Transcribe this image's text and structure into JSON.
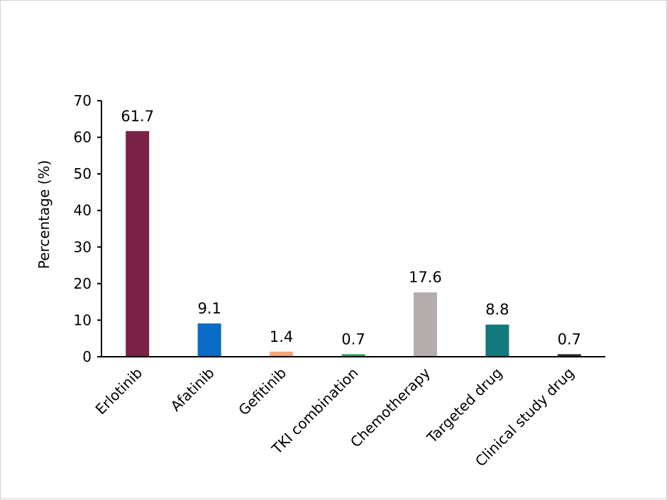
{
  "chart_data": {
    "type": "bar",
    "title": "",
    "xlabel": "",
    "ylabel": "Percentage (%)",
    "ylim": [
      0,
      70
    ],
    "yticks": [
      0,
      10,
      20,
      30,
      40,
      50,
      60,
      70
    ],
    "grid": false,
    "legend": "none",
    "categories": [
      "Erlotinib",
      "Afatinib",
      "Gefitinib",
      "TKI combination",
      "Chemotherapy",
      "Targeted drug",
      "Clinical study drug"
    ],
    "values": [
      61.7,
      9.1,
      1.4,
      0.7,
      17.6,
      8.8,
      0.7
    ],
    "data_labels": [
      "61.7",
      "9.1",
      "1.4",
      "0.7",
      "17.6",
      "8.8",
      "0.7"
    ],
    "colors": [
      "#7b2145",
      "#0a6cc4",
      "#f4a57a",
      "#2ba35a",
      "#b3adae",
      "#127a7c",
      "#2b2b2b"
    ]
  }
}
